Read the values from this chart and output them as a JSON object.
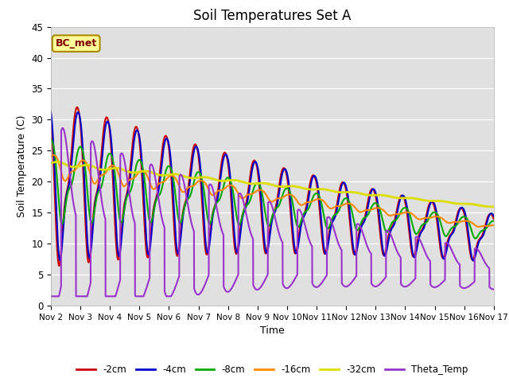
{
  "title": "Soil Temperatures Set A",
  "xlabel": "Time",
  "ylabel": "Soil Temperature (C)",
  "ylim": [
    0,
    45
  ],
  "xlim": [
    0,
    15
  ],
  "xtick_labels": [
    "Nov 2",
    "Nov 3",
    "Nov 4",
    "Nov 5",
    "Nov 6",
    "Nov 7",
    "Nov 8",
    "Nov 9",
    "Nov 10",
    "Nov 11",
    "Nov 12",
    "Nov 13",
    "Nov 14",
    "Nov 15",
    "Nov 16",
    "Nov 17"
  ],
  "legend_entries": [
    "-2cm",
    "-4cm",
    "-8cm",
    "-16cm",
    "-32cm",
    "Theta_Temp"
  ],
  "line_colors": [
    "#cc0000",
    "#0000cc",
    "#00aa00",
    "#ff8800",
    "#dddd00",
    "#9933cc"
  ],
  "line_widths": [
    1.5,
    1.5,
    1.5,
    1.5,
    2.0,
    1.5
  ],
  "annotation_text": "BC_met",
  "annotation_bgcolor": "#ffff99",
  "annotation_edgecolor": "#aa8800",
  "background_color": "#e0e0e0",
  "title_fontsize": 12,
  "axis_fontsize": 9
}
